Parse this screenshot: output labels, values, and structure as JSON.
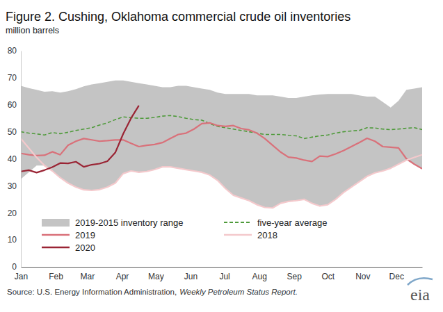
{
  "chart_data": {
    "type": "line",
    "title": "Figure 2. Cushing, Oklahoma commercial crude oil inventories",
    "subtitle": "million barrels",
    "source": {
      "text": "Source: U.S. Energy Information Administration,",
      "publication": "Weekly Petroleum Status Report."
    },
    "logo": "eia",
    "x": [
      1,
      2,
      3,
      4,
      5,
      6,
      7,
      8,
      9,
      10,
      11,
      12,
      13,
      14,
      15,
      16,
      17,
      18,
      19,
      20,
      21,
      22,
      23,
      24,
      25,
      26,
      27,
      28,
      29,
      30,
      31,
      32,
      33,
      34,
      35,
      36,
      37,
      38,
      39,
      40,
      41,
      42,
      43,
      44,
      45,
      46,
      47,
      48,
      49,
      50,
      51,
      52
    ],
    "xlim": [
      1,
      52
    ],
    "xticks": [
      {
        "value": 1,
        "label": "Jan"
      },
      {
        "value": 5.43,
        "label": "Feb"
      },
      {
        "value": 9.43,
        "label": "Mar"
      },
      {
        "value": 13.86,
        "label": "Apr"
      },
      {
        "value": 18.14,
        "label": "May"
      },
      {
        "value": 22.57,
        "label": "Jun"
      },
      {
        "value": 26.86,
        "label": "Jul"
      },
      {
        "value": 31.29,
        "label": "Aug"
      },
      {
        "value": 35.71,
        "label": "Sep"
      },
      {
        "value": 40,
        "label": "Oct"
      },
      {
        "value": 44.43,
        "label": "Nov"
      },
      {
        "value": 48.71,
        "label": "Dec"
      }
    ],
    "ylim": [
      0,
      80
    ],
    "yticks": [
      0,
      10,
      20,
      30,
      40,
      50,
      60,
      70,
      80
    ],
    "grid": false,
    "legend": "lower left",
    "series": [
      {
        "name": "2019-2015 inventory range",
        "type": "area",
        "color": "#c4c4c4",
        "low": [
          32.5,
          35.0,
          37.5,
          37.5,
          35.5,
          33.0,
          31.0,
          29.5,
          28.5,
          28.3,
          28.6,
          29.5,
          31.0,
          34.5,
          35.5,
          35.0,
          35.3,
          36.0,
          37.0,
          37.0,
          36.5,
          36.0,
          35.5,
          35.0,
          34.0,
          32.0,
          29.0,
          26.5,
          25.5,
          24.5,
          23.0,
          22.0,
          21.8,
          23.5,
          24.2,
          24.5,
          25.0,
          23.5,
          22.5,
          23.0,
          25.0,
          27.5,
          29.5,
          31.5,
          33.5,
          34.8,
          35.5,
          36.5,
          38.0,
          39.5,
          38.0,
          36.3
        ],
        "high": [
          67.0,
          66.2,
          65.5,
          64.8,
          65.0,
          64.5,
          65.0,
          65.8,
          66.8,
          67.5,
          68.0,
          68.5,
          69.0,
          69.0,
          68.5,
          68.0,
          67.5,
          67.0,
          66.5,
          66.5,
          67.0,
          67.0,
          66.5,
          66.0,
          65.5,
          64.5,
          64.0,
          64.0,
          64.0,
          64.0,
          63.5,
          63.5,
          63.5,
          63.0,
          62.5,
          62.5,
          63.0,
          63.5,
          63.8,
          64.0,
          64.0,
          64.0,
          64.0,
          63.5,
          63.0,
          63.0,
          61.0,
          59.0,
          61.5,
          65.5,
          66.0,
          66.5
        ]
      },
      {
        "name": "five-year average",
        "type": "line",
        "line_style": "dashed",
        "color": "#4e9a3a",
        "values": [
          50.0,
          49.5,
          49.2,
          48.8,
          49.7,
          49.3,
          49.8,
          50.5,
          51.0,
          51.5,
          52.5,
          53.3,
          54.5,
          55.5,
          55.2,
          55.0,
          55.0,
          55.3,
          55.8,
          56.0,
          55.6,
          55.0,
          54.5,
          54.3,
          53.0,
          52.0,
          51.5,
          51.0,
          50.5,
          50.0,
          49.5,
          49.0,
          49.0,
          49.0,
          48.7,
          48.5,
          47.5,
          48.0,
          48.5,
          48.8,
          49.5,
          50.0,
          50.3,
          50.5,
          51.5,
          51.4,
          51.0,
          50.8,
          51.0,
          51.3,
          51.5,
          50.8
        ]
      },
      {
        "name": "2019",
        "type": "line",
        "line_style": "solid",
        "color": "#d9717a",
        "values": [
          42.0,
          41.5,
          41.2,
          41.3,
          42.6,
          41.5,
          45.0,
          46.5,
          47.5,
          47.0,
          46.5,
          46.7,
          47.0,
          47.0,
          45.7,
          44.5,
          45.0,
          45.3,
          46.0,
          47.5,
          49.0,
          49.5,
          51.0,
          53.0,
          53.3,
          52.3,
          52.0,
          52.3,
          51.2,
          50.7,
          49.5,
          47.5,
          45.0,
          42.5,
          40.6,
          40.3,
          39.5,
          39.0,
          41.0,
          40.8,
          41.8,
          43.0,
          44.5,
          46.0,
          47.6,
          46.5,
          44.5,
          44.3,
          44.0,
          40.0,
          38.0,
          36.3
        ]
      },
      {
        "name": "2018",
        "type": "line",
        "line_style": "solid",
        "color": "#f4c9cc",
        "values": [
          47.5,
          44.0,
          40.5,
          37.5,
          35.5,
          33.0,
          31.0,
          29.5,
          28.5,
          28.3,
          28.6,
          29.5,
          31.0,
          34.5,
          35.5,
          35.0,
          35.3,
          36.0,
          37.0,
          37.0,
          36.5,
          36.0,
          35.5,
          35.0,
          34.0,
          32.0,
          29.0,
          26.5,
          25.5,
          24.5,
          23.0,
          22.0,
          21.8,
          23.5,
          24.2,
          24.5,
          25.0,
          23.5,
          22.5,
          23.0,
          25.0,
          27.5,
          29.5,
          31.5,
          33.5,
          34.8,
          35.5,
          36.5,
          38.0,
          39.5,
          40.5,
          41.5
        ]
      },
      {
        "name": "2020",
        "type": "line",
        "line_style": "solid",
        "color": "#9a2434",
        "values": [
          35.3,
          35.8,
          34.9,
          35.8,
          36.9,
          38.4,
          38.3,
          38.9,
          37.0,
          37.8,
          38.2,
          39.1,
          42.3,
          49.2,
          55.0,
          59.7,
          null,
          null,
          null,
          null,
          null,
          null,
          null,
          null,
          null,
          null,
          null,
          null,
          null,
          null,
          null,
          null,
          null,
          null,
          null,
          null,
          null,
          null,
          null,
          null,
          null,
          null,
          null,
          null,
          null,
          null,
          null,
          null,
          null,
          null,
          null,
          null
        ]
      }
    ]
  }
}
